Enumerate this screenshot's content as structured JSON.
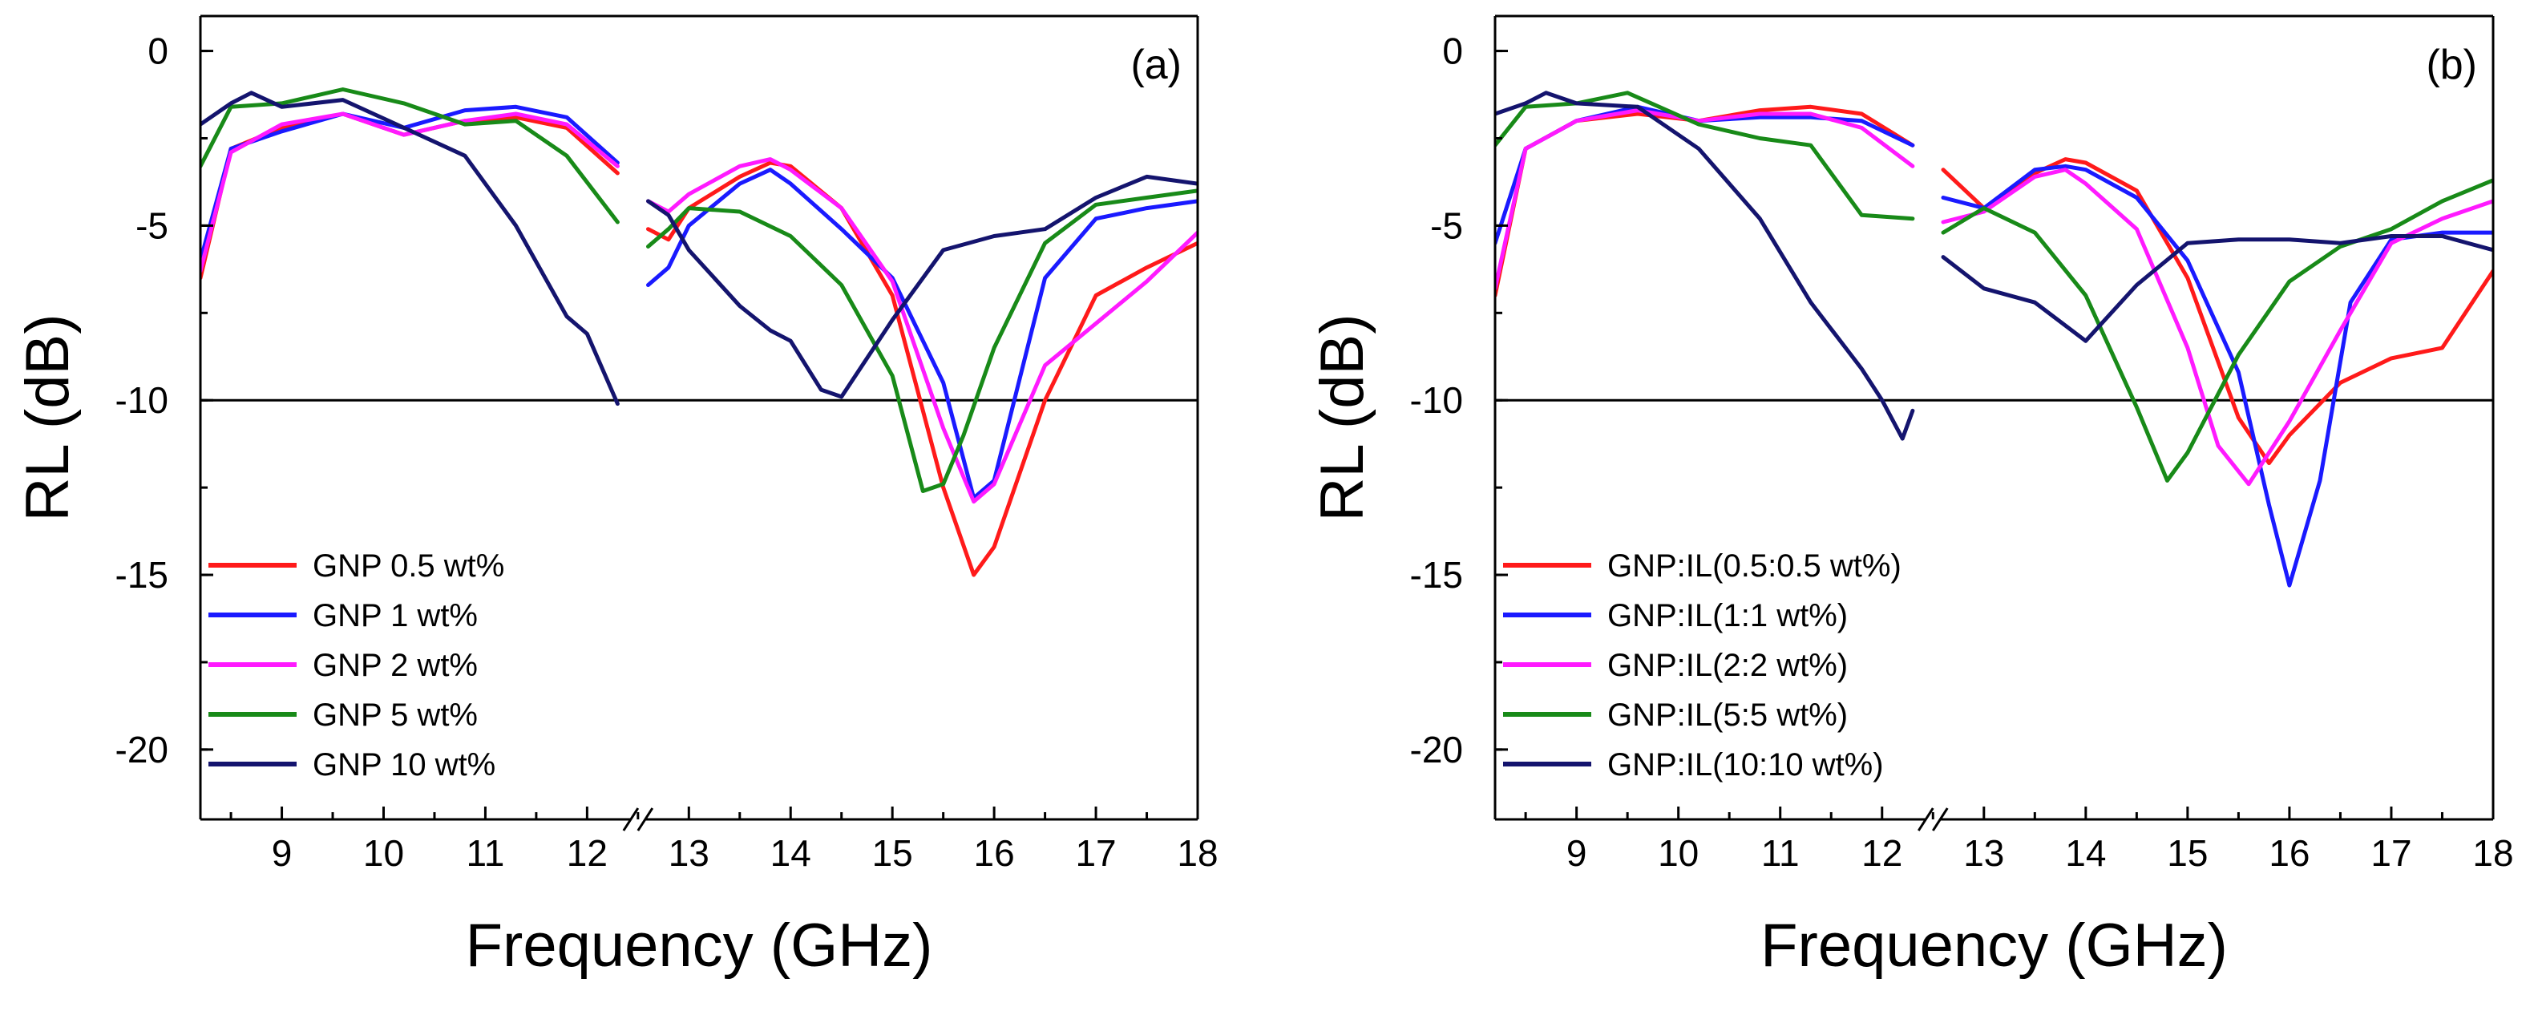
{
  "chart_data": [
    {
      "type": "line",
      "panel_label": "(a)",
      "title": "",
      "xlabel": "Frequency (GHz)",
      "ylabel": "RL (dB)",
      "xlim": [
        8.2,
        18
      ],
      "ylim": [
        -22,
        1
      ],
      "x_break": [
        12.4,
        12.6
      ],
      "x_ticks": [
        9,
        10,
        11,
        12,
        13,
        14,
        15,
        16,
        17,
        18
      ],
      "y_ticks": [
        0,
        -5,
        -10,
        -15,
        -20
      ],
      "reference_line_y": -10,
      "legend_position": "bottom-left",
      "series": [
        {
          "name": "GNP 0.5 wt%",
          "color": "#ff1a1a",
          "x": [
            8.2,
            8.5,
            9.0,
            9.6,
            10.2,
            10.8,
            11.3,
            11.8,
            12.3,
            12.6,
            12.8,
            13.0,
            13.5,
            13.8,
            14.0,
            14.5,
            15.0,
            15.5,
            15.8,
            16.0,
            16.5,
            17.0,
            17.5,
            18.0
          ],
          "y": [
            -6.5,
            -2.8,
            -2.2,
            -1.8,
            -2.4,
            -2.0,
            -1.9,
            -2.2,
            -3.5,
            -5.1,
            -5.4,
            -4.5,
            -3.6,
            -3.2,
            -3.3,
            -4.5,
            -7.0,
            -12.5,
            -15.0,
            -14.2,
            -10.0,
            -7.0,
            -6.2,
            -5.5
          ]
        },
        {
          "name": "GNP 1 wt%",
          "color": "#1a1aff",
          "x": [
            8.2,
            8.5,
            9.0,
            9.6,
            10.2,
            10.8,
            11.3,
            11.8,
            12.3,
            12.6,
            12.8,
            13.0,
            13.5,
            13.8,
            14.0,
            14.5,
            15.0,
            15.5,
            15.8,
            16.0,
            16.5,
            17.0,
            17.5,
            18.0
          ],
          "y": [
            -6.0,
            -2.8,
            -2.3,
            -1.8,
            -2.2,
            -1.7,
            -1.6,
            -1.9,
            -3.2,
            -6.7,
            -6.2,
            -5.0,
            -3.8,
            -3.4,
            -3.8,
            -5.1,
            -6.5,
            -9.5,
            -12.8,
            -12.3,
            -6.5,
            -4.8,
            -4.5,
            -4.3
          ]
        },
        {
          "name": "GNP 2 wt%",
          "color": "#ff1aff",
          "x": [
            8.2,
            8.5,
            9.0,
            9.6,
            10.2,
            10.8,
            11.3,
            11.8,
            12.3,
            12.6,
            12.8,
            13.0,
            13.5,
            13.8,
            14.0,
            14.5,
            15.0,
            15.5,
            15.8,
            16.0,
            16.5,
            17.0,
            17.5,
            18.0
          ],
          "y": [
            -6.3,
            -2.9,
            -2.1,
            -1.8,
            -2.4,
            -2.0,
            -1.8,
            -2.1,
            -3.3,
            -4.3,
            -4.6,
            -4.1,
            -3.3,
            -3.1,
            -3.4,
            -4.5,
            -6.6,
            -10.8,
            -12.9,
            -12.4,
            -9.0,
            -7.8,
            -6.6,
            -5.2
          ]
        },
        {
          "name": "GNP 5 wt%",
          "color": "#188a18",
          "x": [
            8.2,
            8.5,
            9.0,
            9.6,
            10.2,
            10.8,
            11.3,
            11.8,
            12.3,
            12.6,
            12.8,
            13.0,
            13.5,
            14.0,
            14.5,
            15.0,
            15.3,
            15.5,
            15.7,
            16.0,
            16.5,
            17.0,
            17.5,
            18.0
          ],
          "y": [
            -3.3,
            -1.6,
            -1.5,
            -1.1,
            -1.5,
            -2.1,
            -2.0,
            -3.0,
            -4.9,
            -5.6,
            -5.1,
            -4.5,
            -4.6,
            -5.3,
            -6.7,
            -9.3,
            -12.6,
            -12.4,
            -11.0,
            -8.5,
            -5.5,
            -4.4,
            -4.2,
            -4.0
          ]
        },
        {
          "name": "GNP 10 wt%",
          "color": "#14146e",
          "x": [
            8.2,
            8.5,
            8.7,
            9.0,
            9.6,
            10.2,
            10.8,
            11.3,
            11.8,
            12.0,
            12.3,
            12.6,
            12.8,
            13.0,
            13.5,
            13.8,
            14.0,
            14.3,
            14.5,
            15.0,
            15.5,
            16.0,
            16.5,
            17.0,
            17.5,
            18.0
          ],
          "y": [
            -2.1,
            -1.5,
            -1.2,
            -1.6,
            -1.4,
            -2.2,
            -3.0,
            -5.0,
            -7.6,
            -8.1,
            -10.1,
            -4.3,
            -4.7,
            -5.7,
            -7.3,
            -8.0,
            -8.3,
            -9.7,
            -9.9,
            -7.7,
            -5.7,
            -5.3,
            -5.1,
            -4.2,
            -3.6,
            -3.8
          ]
        }
      ]
    },
    {
      "type": "line",
      "panel_label": "(b)",
      "title": "",
      "xlabel": "Frequency (GHz)",
      "ylabel": "RL (dB)",
      "xlim": [
        8.2,
        18
      ],
      "ylim": [
        -22,
        1
      ],
      "x_break": [
        12.4,
        12.6
      ],
      "x_ticks": [
        9,
        10,
        11,
        12,
        13,
        14,
        15,
        16,
        17,
        18
      ],
      "y_ticks": [
        0,
        -5,
        -10,
        -15,
        -20
      ],
      "reference_line_y": -10,
      "legend_position": "bottom-left",
      "series": [
        {
          "name": "GNP:IL(0.5:0.5 wt%)",
          "color": "#ff1a1a",
          "x": [
            8.2,
            8.5,
            9.0,
            9.6,
            10.2,
            10.8,
            11.3,
            11.8,
            12.3,
            12.6,
            13.0,
            13.5,
            13.8,
            14.0,
            14.5,
            15.0,
            15.5,
            15.8,
            16.0,
            16.5,
            17.0,
            17.5,
            18.0
          ],
          "y": [
            -7.0,
            -2.8,
            -2.0,
            -1.8,
            -2.0,
            -1.7,
            -1.6,
            -1.8,
            -2.7,
            -3.4,
            -4.5,
            -3.5,
            -3.1,
            -3.2,
            -4.0,
            -6.5,
            -10.5,
            -11.8,
            -11.0,
            -9.5,
            -8.8,
            -8.5,
            -6.3
          ]
        },
        {
          "name": "GNP:IL(1:1 wt%)",
          "color": "#1a1aff",
          "x": [
            8.2,
            8.5,
            9.0,
            9.6,
            10.2,
            10.8,
            11.3,
            11.8,
            12.3,
            12.6,
            13.0,
            13.5,
            13.8,
            14.0,
            14.5,
            15.0,
            15.5,
            15.8,
            16.0,
            16.3,
            16.6,
            17.0,
            17.5,
            18.0
          ],
          "y": [
            -5.5,
            -2.8,
            -2.0,
            -1.6,
            -2.0,
            -1.9,
            -1.9,
            -2.0,
            -2.7,
            -4.2,
            -4.5,
            -3.4,
            -3.3,
            -3.4,
            -4.2,
            -6.0,
            -9.2,
            -13.0,
            -15.3,
            -12.3,
            -7.2,
            -5.4,
            -5.2,
            -5.2
          ]
        },
        {
          "name": "GNP:IL(2:2 wt%)",
          "color": "#ff1aff",
          "x": [
            8.2,
            8.5,
            9.0,
            9.6,
            10.2,
            10.8,
            11.3,
            11.8,
            12.3,
            12.6,
            13.0,
            13.5,
            13.8,
            14.0,
            14.5,
            15.0,
            15.3,
            15.6,
            16.0,
            16.5,
            17.0,
            17.5,
            18.0
          ],
          "y": [
            -6.8,
            -2.8,
            -2.0,
            -1.7,
            -2.0,
            -1.8,
            -1.8,
            -2.2,
            -3.3,
            -4.9,
            -4.6,
            -3.6,
            -3.4,
            -3.8,
            -5.1,
            -8.5,
            -11.3,
            -12.4,
            -10.6,
            -8.0,
            -5.5,
            -4.8,
            -4.3
          ]
        },
        {
          "name": "GNP:IL(5:5 wt%)",
          "color": "#188a18",
          "x": [
            8.2,
            8.5,
            9.0,
            9.5,
            10.2,
            10.8,
            11.3,
            11.8,
            12.3,
            12.6,
            13.0,
            13.5,
            14.0,
            14.5,
            14.8,
            15.0,
            15.5,
            16.0,
            16.5,
            17.0,
            17.5,
            18.0
          ],
          "y": [
            -2.7,
            -1.6,
            -1.5,
            -1.2,
            -2.1,
            -2.5,
            -2.7,
            -4.7,
            -4.8,
            -5.2,
            -4.5,
            -5.2,
            -7.0,
            -10.2,
            -12.3,
            -11.5,
            -8.7,
            -6.6,
            -5.6,
            -5.1,
            -4.3,
            -3.7
          ]
        },
        {
          "name": "GNP:IL(10:10 wt%)",
          "color": "#14146e",
          "x": [
            8.2,
            8.5,
            8.7,
            9.0,
            9.6,
            10.2,
            10.8,
            11.3,
            11.8,
            12.0,
            12.2,
            12.3,
            12.6,
            13.0,
            13.5,
            14.0,
            14.5,
            15.0,
            15.5,
            16.0,
            16.5,
            17.0,
            17.5,
            18.0
          ],
          "y": [
            -1.8,
            -1.5,
            -1.2,
            -1.5,
            -1.6,
            -2.8,
            -4.8,
            -7.2,
            -9.1,
            -10.0,
            -11.1,
            -10.3,
            -5.9,
            -6.8,
            -7.2,
            -8.3,
            -6.7,
            -5.5,
            -5.4,
            -5.4,
            -5.5,
            -5.3,
            -5.3,
            -5.7
          ]
        }
      ]
    }
  ]
}
